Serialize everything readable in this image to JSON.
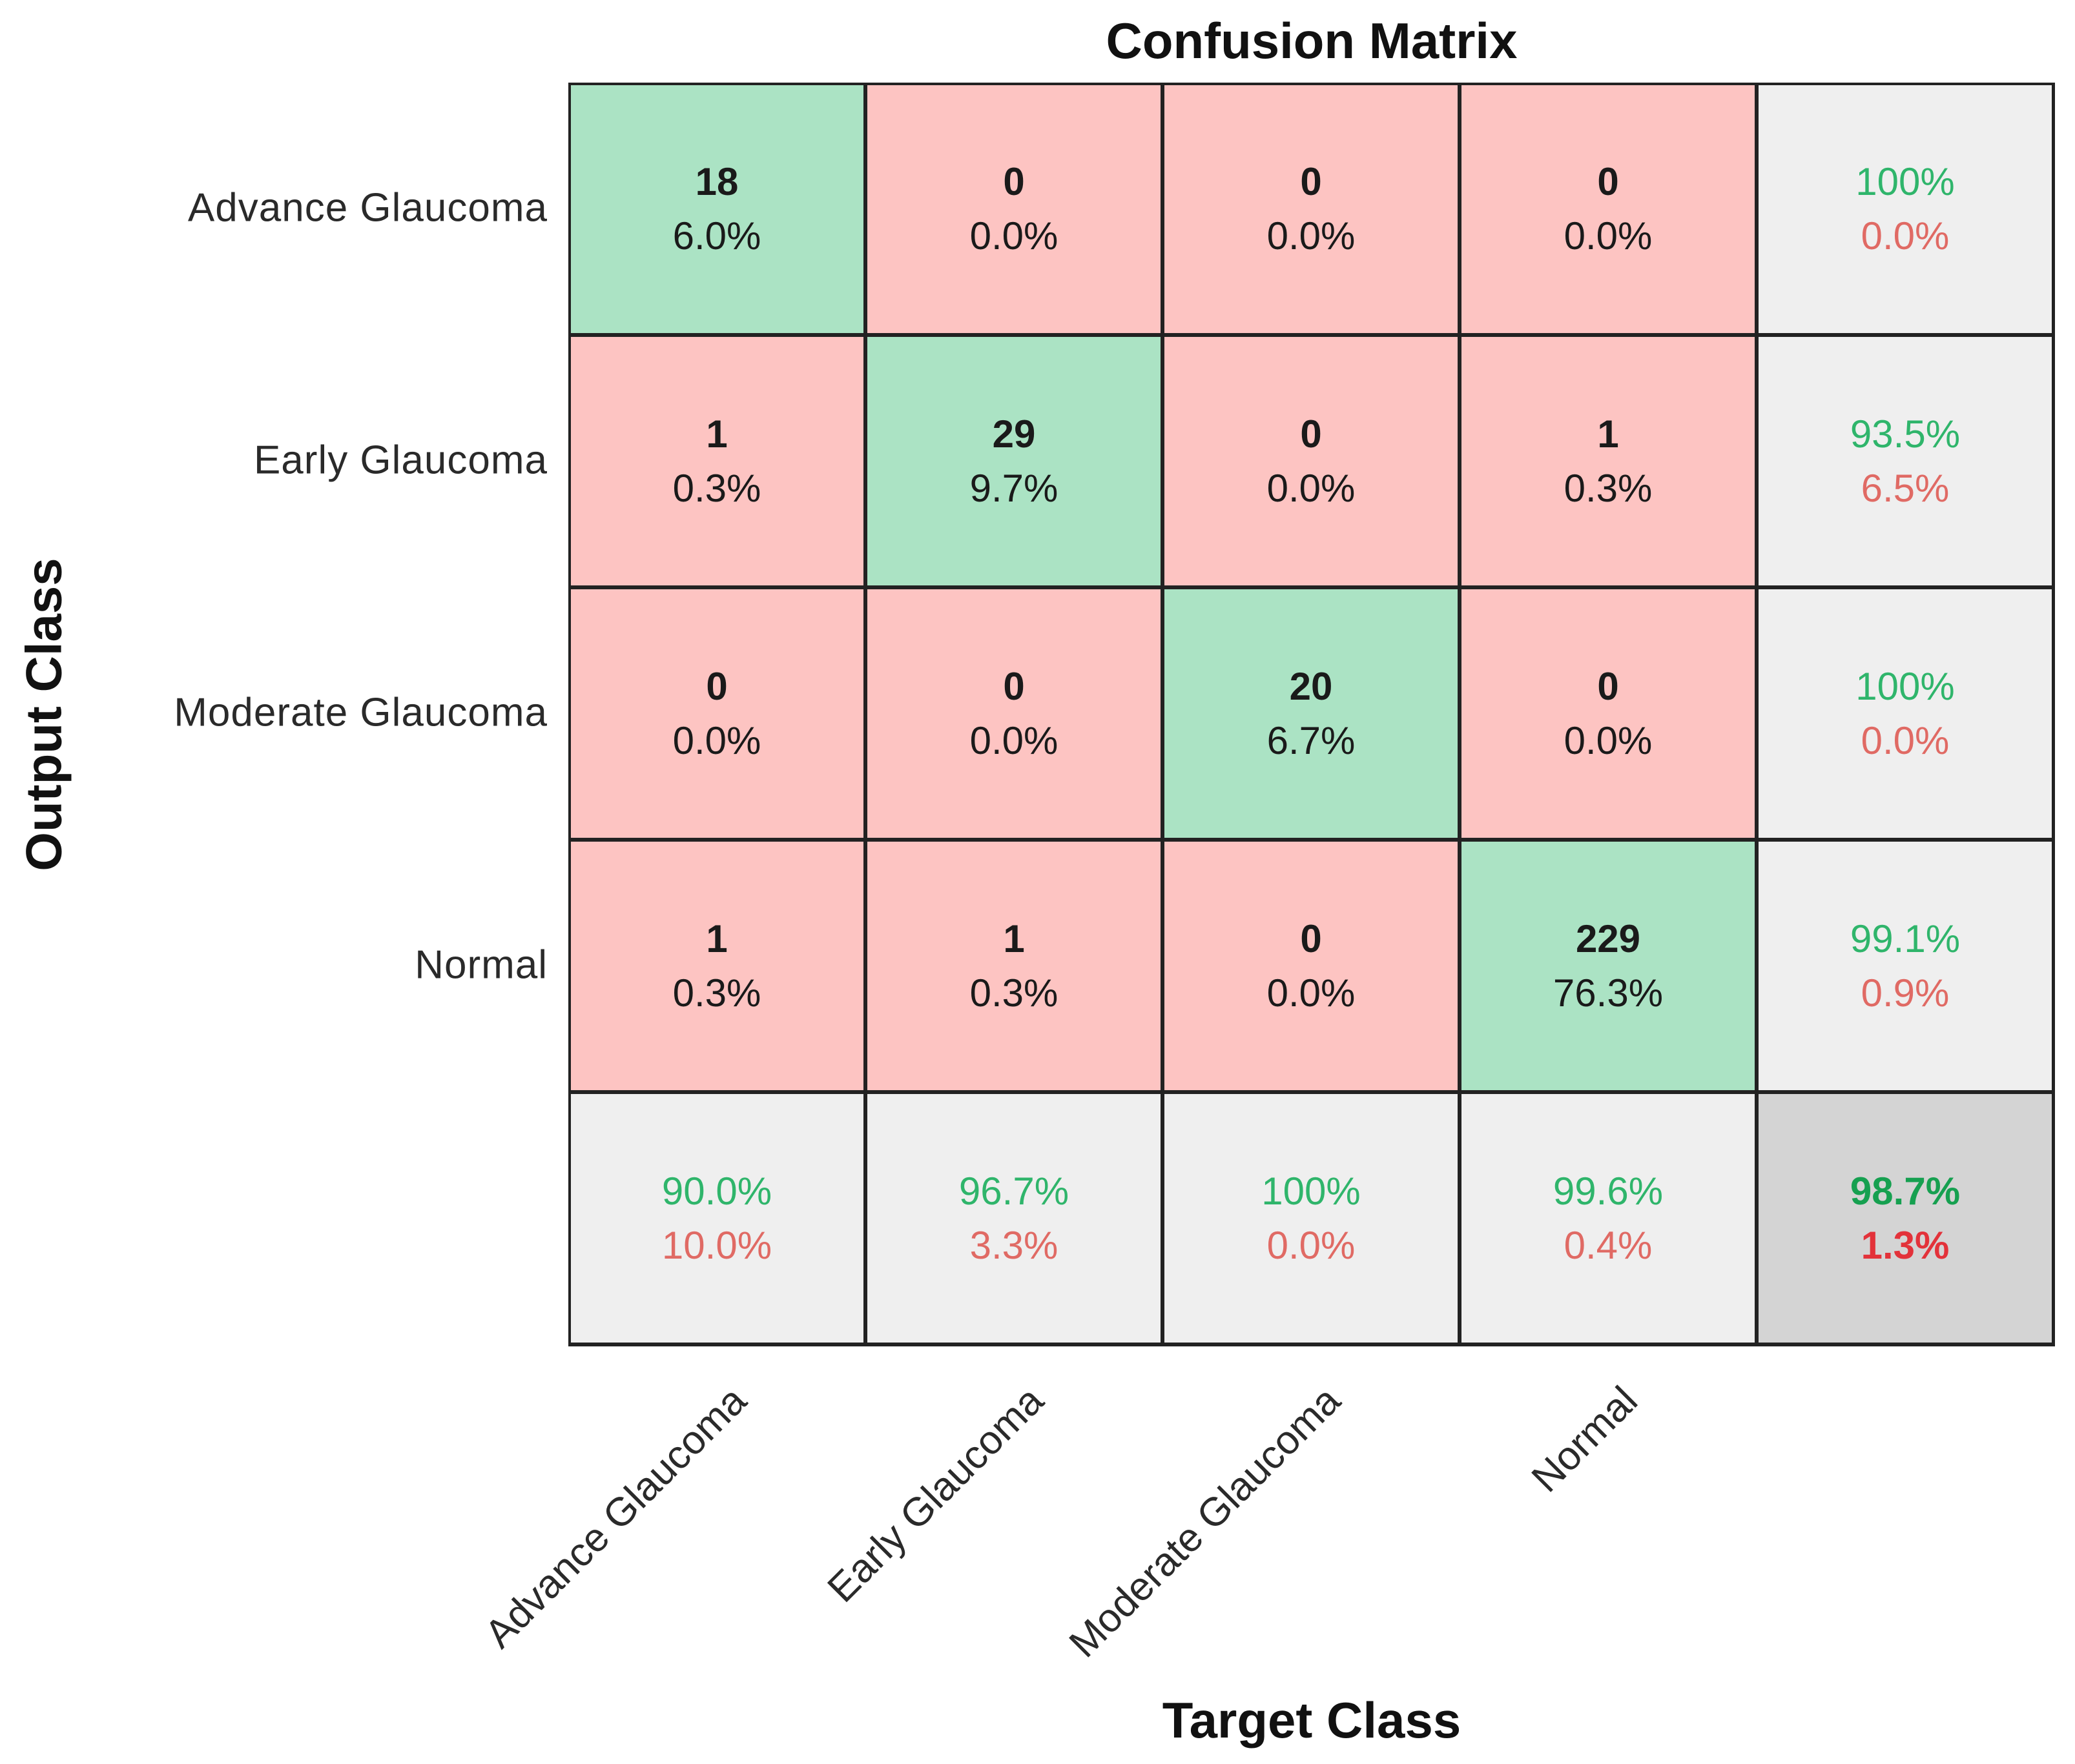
{
  "chart_data": {
    "type": "table",
    "title": "Confusion Matrix",
    "xlabel": "Target Class",
    "ylabel": "Output Class",
    "classes": [
      "Advance Glaucoma",
      "Early Glaucoma",
      "Moderate Glaucoma",
      "Normal"
    ],
    "matrix": [
      [
        {
          "count": "18",
          "percent": "6.0%"
        },
        {
          "count": "0",
          "percent": "0.0%"
        },
        {
          "count": "0",
          "percent": "0.0%"
        },
        {
          "count": "0",
          "percent": "0.0%"
        }
      ],
      [
        {
          "count": "1",
          "percent": "0.3%"
        },
        {
          "count": "29",
          "percent": "9.7%"
        },
        {
          "count": "0",
          "percent": "0.0%"
        },
        {
          "count": "1",
          "percent": "0.3%"
        }
      ],
      [
        {
          "count": "0",
          "percent": "0.0%"
        },
        {
          "count": "0",
          "percent": "0.0%"
        },
        {
          "count": "20",
          "percent": "6.7%"
        },
        {
          "count": "0",
          "percent": "0.0%"
        }
      ],
      [
        {
          "count": "1",
          "percent": "0.3%"
        },
        {
          "count": "1",
          "percent": "0.3%"
        },
        {
          "count": "0",
          "percent": "0.0%"
        },
        {
          "count": "229",
          "percent": "76.3%"
        }
      ]
    ],
    "row_summary": [
      {
        "correct": "100%",
        "incorrect": "0.0%"
      },
      {
        "correct": "93.5%",
        "incorrect": "6.5%"
      },
      {
        "correct": "100%",
        "incorrect": "0.0%"
      },
      {
        "correct": "99.1%",
        "incorrect": "0.9%"
      }
    ],
    "column_summary": [
      {
        "correct": "90.0%",
        "incorrect": "10.0%"
      },
      {
        "correct": "96.7%",
        "incorrect": "3.3%"
      },
      {
        "correct": "100%",
        "incorrect": "0.0%"
      },
      {
        "correct": "99.6%",
        "incorrect": "0.4%"
      }
    ],
    "overall": {
      "correct": "98.7%",
      "incorrect": "1.3%"
    }
  },
  "colors": {
    "diagonal": "#abe3c4",
    "off_diagonal": "#fdc4c2",
    "summary": "#efefef",
    "overall": "#d4d4d4",
    "correct_text": "#2fb56b",
    "incorrect_text": "#e06a64",
    "overall_correct_text": "#16a050",
    "overall_incorrect_text": "#e3323a"
  }
}
